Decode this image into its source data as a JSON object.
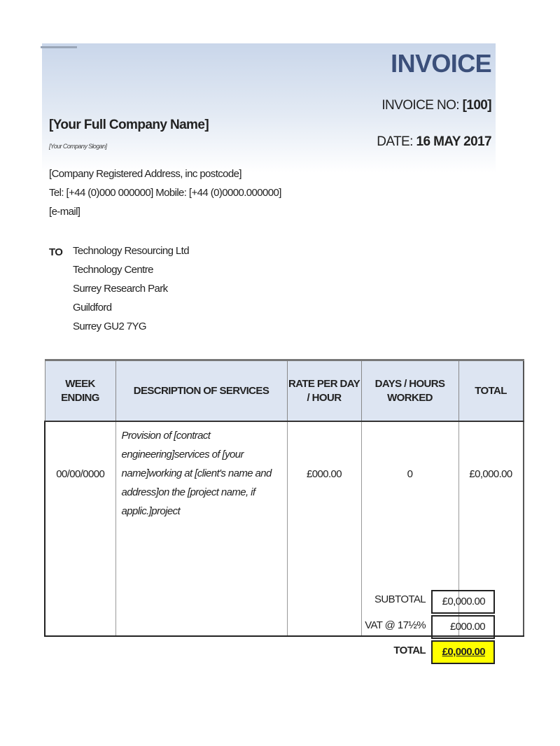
{
  "header": {
    "title": "INVOICE",
    "invoice_no_label": "INVOICE NO:",
    "invoice_no": "[100]",
    "date_label": "DATE:",
    "date": "16 MAY 2017"
  },
  "company": {
    "name": "[Your Full Company Name]",
    "slogan": "[Your Company Slogan]",
    "address": "[Company Registered Address, inc postcode]",
    "phone": "Tel: [+44 (0)000 000000] Mobile: [+44 (0)0000.000000]",
    "email": "[e-mail]"
  },
  "recipient": {
    "label": "TO",
    "lines": [
      "Technology Resourcing Ltd",
      "Technology Centre",
      "Surrey Research Park",
      "Guildford",
      "Surrey GU2 7YG"
    ]
  },
  "table": {
    "headers": [
      "WEEK ENDING",
      "DESCRIPTION OF SERVICES",
      "RATE PER DAY / HOUR",
      "DAYS / HOURS WORKED",
      "TOTAL"
    ],
    "rows": [
      {
        "week": "00/00/0000",
        "description": "Provision of [contract engineering]services of [your name]working at [client's name and address]on the    [project name, if applic.]project",
        "rate": "£000.00",
        "days": "0",
        "total": "£0,000.00"
      }
    ]
  },
  "summary": {
    "subtotal_label": "SUBTOTAL",
    "subtotal": "£0,000.00",
    "vat_label": "VAT @ 17½%",
    "vat": "£000.00",
    "total_label": "TOTAL",
    "total": "£0,000.00",
    "total_highlight": "#ffff00"
  }
}
